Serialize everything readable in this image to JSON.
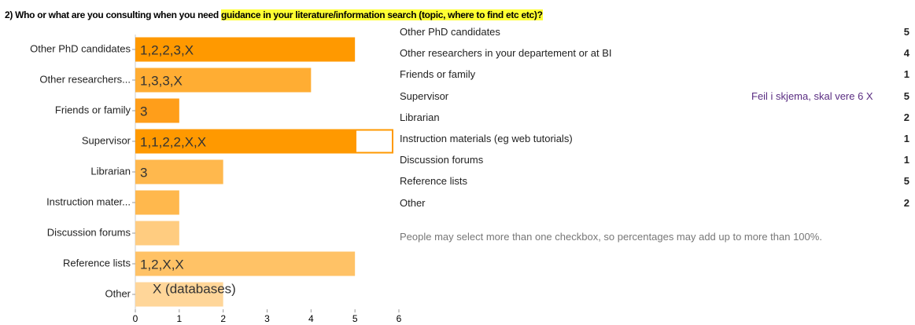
{
  "question": {
    "prefix": "2) Who or what are you consulting when you need ",
    "highlight": "guidance in your literature/information search (topic, where to find etc etc)?"
  },
  "chart_data": {
    "type": "bar",
    "orientation": "horizontal",
    "categories": [
      "Other PhD candidates",
      "Other researchers...",
      "Friends or family",
      "Supervisor",
      "Librarian",
      "Instruction mater...",
      "Discussion forums",
      "Reference lists",
      "Other"
    ],
    "values": [
      5,
      4,
      1,
      5,
      2,
      1,
      1,
      5,
      2
    ],
    "colors": [
      "#ff9900",
      "#ffad33",
      "#ff9e1a",
      "#ff9900",
      "#ffb84d",
      "#ffb84d",
      "#ffcc80",
      "#ffc266",
      "#ffd699"
    ],
    "bar_notes": [
      "1,2,2,3,X",
      "1,3,3,X",
      "3",
      "1,1,2,2,X,X",
      "3",
      null,
      null,
      "1,2,X,X",
      "X (databases)"
    ],
    "xlim": [
      0,
      6
    ],
    "xticks": [
      0,
      1,
      2,
      3,
      4,
      5,
      6
    ]
  },
  "table": {
    "rows": [
      [
        "Other PhD candidates",
        5
      ],
      [
        "Other researchers in your departement or at BI",
        4
      ],
      [
        "Friends or family",
        1
      ],
      [
        "Supervisor",
        5
      ],
      [
        "Librarian",
        2
      ],
      [
        "Instruction materials (eg web tutorials)",
        1
      ],
      [
        "Discussion forums",
        1
      ],
      [
        "Reference lists",
        5
      ],
      [
        "Other",
        2
      ]
    ],
    "annotation": "Feil i skjema, skal vere 6 X",
    "note": "People may select more than one checkbox, so percentages may add up to more than 100%."
  }
}
